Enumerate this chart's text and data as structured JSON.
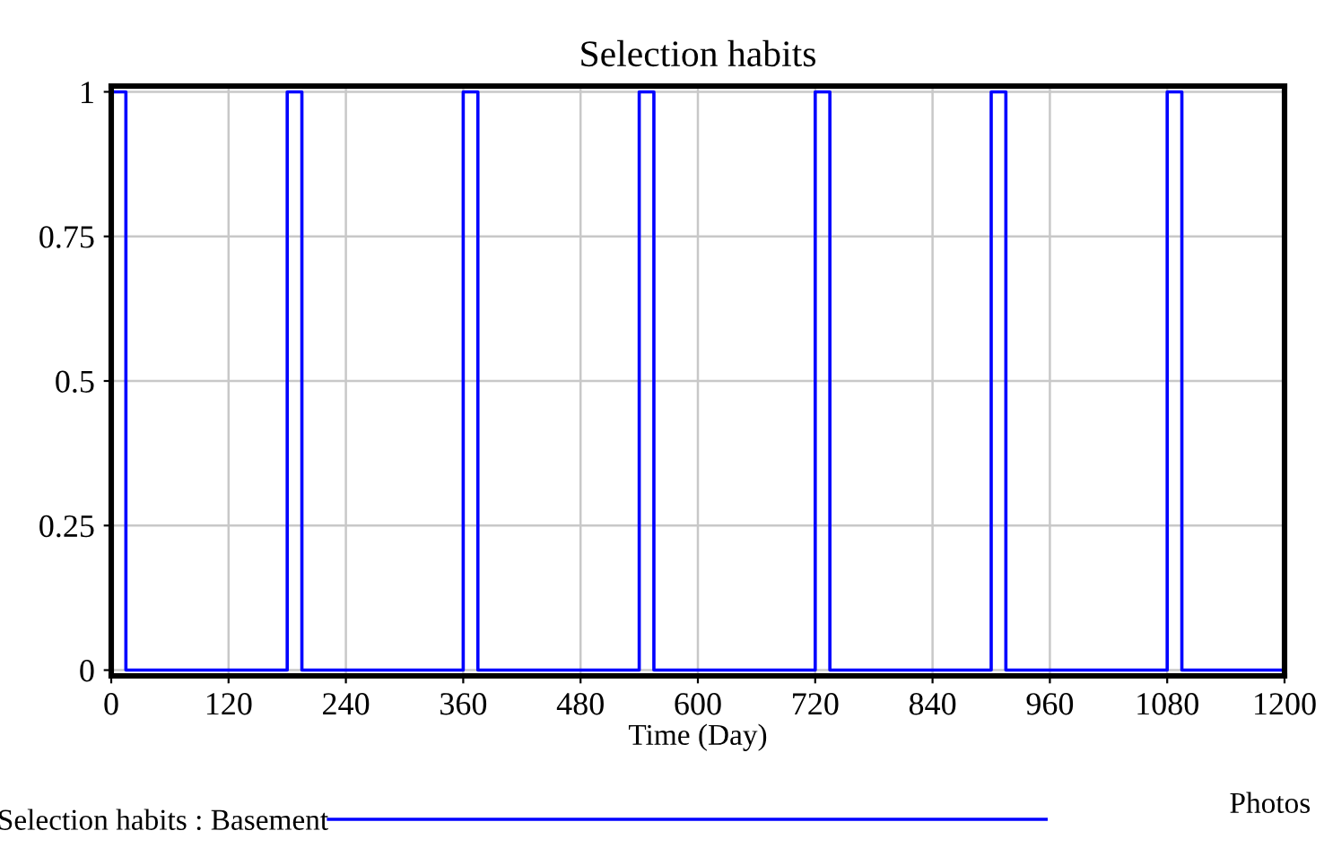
{
  "chart_data": {
    "type": "step",
    "title": "Selection habits",
    "xlabel": "Time (Day)",
    "series": [
      {
        "name": "Selection habits : Basement",
        "color": "#0000ff",
        "x": [
          0,
          15,
          180,
          195,
          360,
          375,
          540,
          555,
          720,
          735,
          900,
          915,
          1080,
          1095,
          1200
        ],
        "values": [
          1,
          0,
          1,
          0,
          1,
          0,
          1,
          0,
          1,
          0,
          1,
          0,
          1,
          0,
          0
        ]
      }
    ],
    "xlim": [
      0,
      1200
    ],
    "xticks": [
      0,
      120,
      240,
      360,
      480,
      600,
      720,
      840,
      960,
      1080,
      1200
    ],
    "ylim": [
      -0.01,
      1.01
    ],
    "yticks": [
      0,
      0.25,
      0.5,
      0.75,
      1
    ],
    "grid": true,
    "legend": "bottom",
    "line_style": "solid",
    "marker": "none",
    "annotations": [
      "Photos"
    ]
  }
}
